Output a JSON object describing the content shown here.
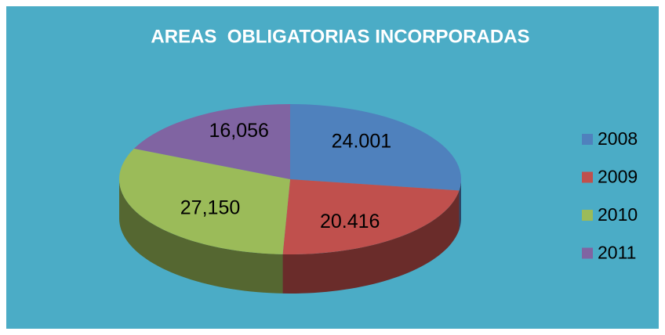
{
  "chart_data": {
    "type": "pie3d",
    "title": "AREAS  OBLIGATORIAS INCORPORADAS",
    "categories": [
      "2008",
      "2009",
      "2010",
      "2011"
    ],
    "values": [
      24001,
      20416,
      27150,
      16056
    ],
    "value_labels": [
      "24.001",
      "20.416",
      "27,150",
      "16,056"
    ],
    "colors": [
      "#4f81bd",
      "#c0504d",
      "#9bbb59",
      "#8064a2"
    ],
    "legend": "right"
  }
}
